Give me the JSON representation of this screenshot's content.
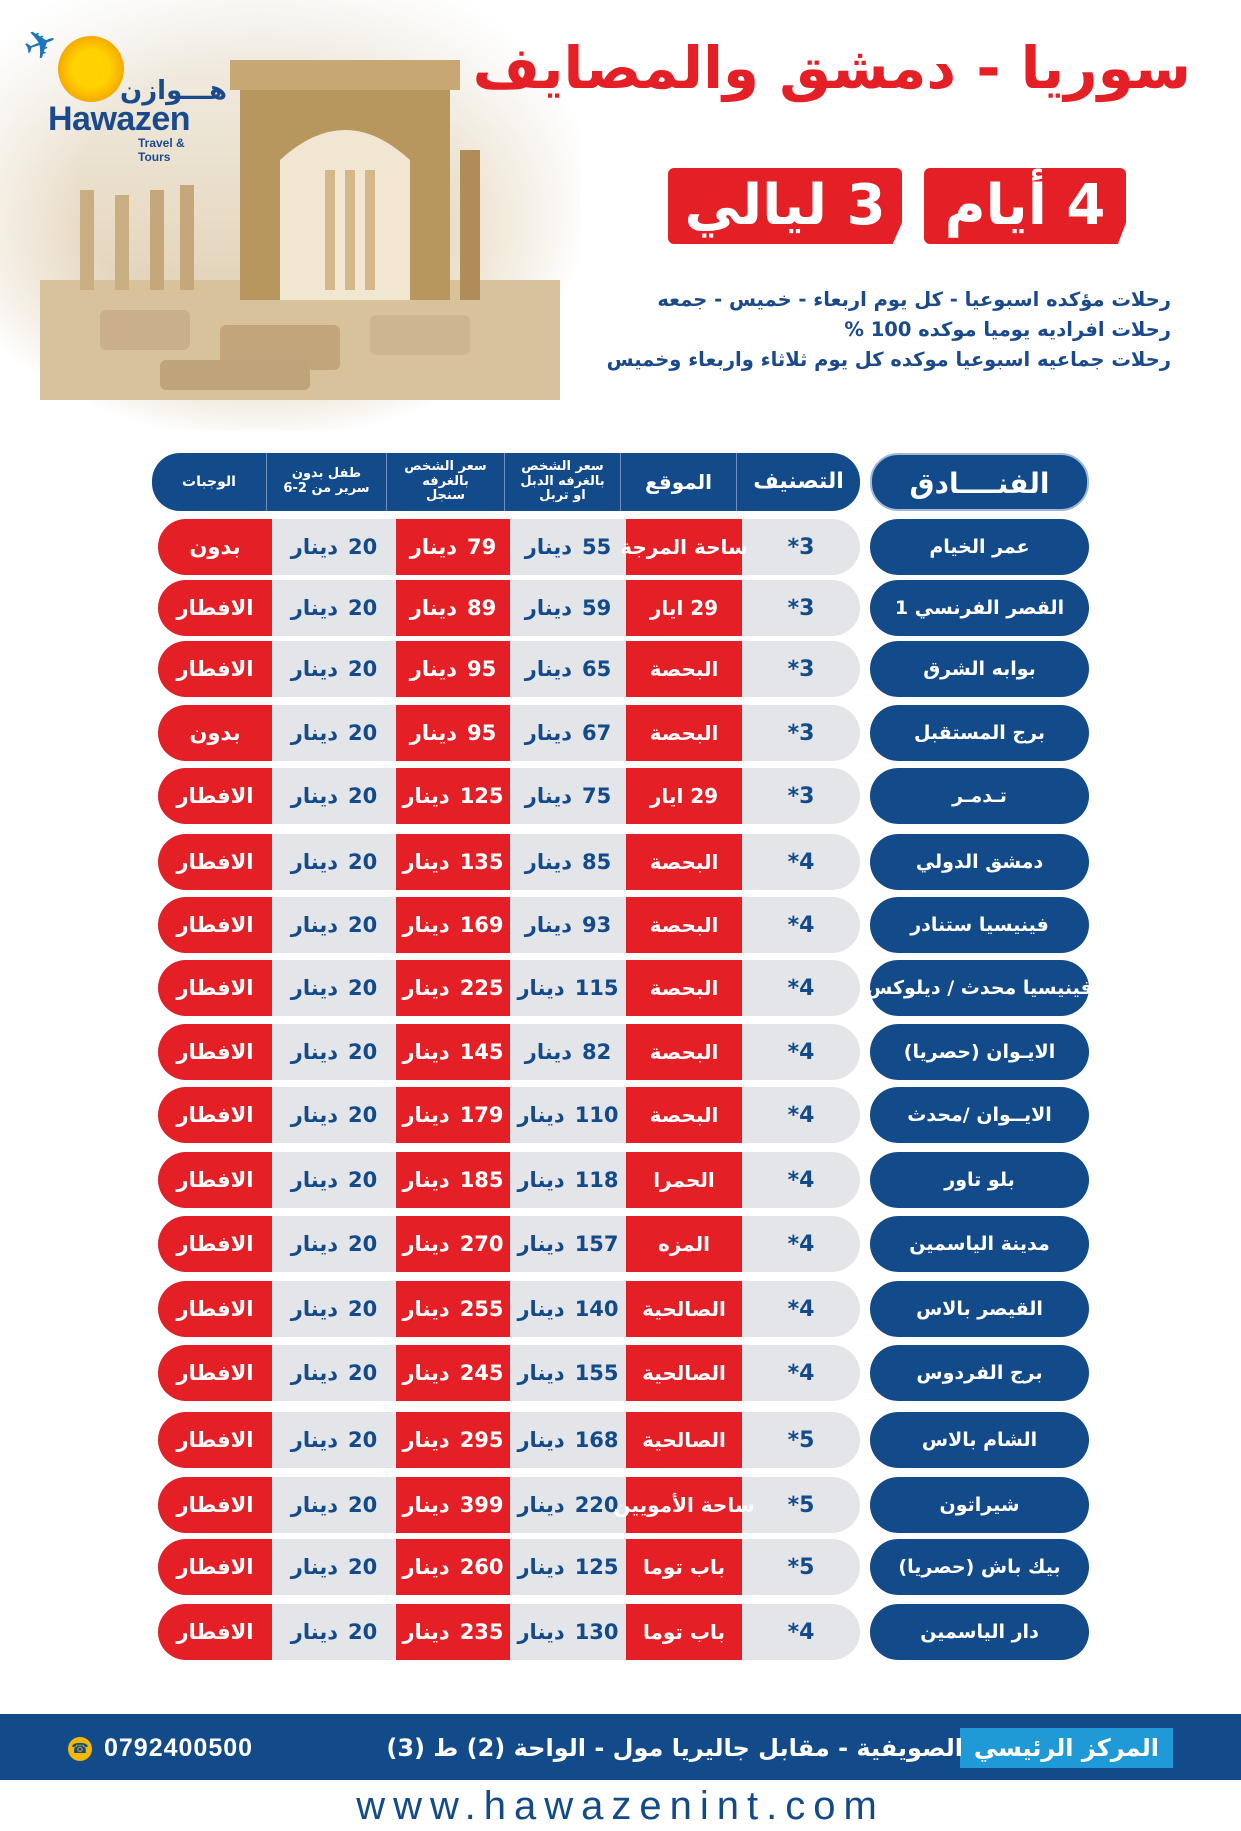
{
  "brand": {
    "name_ar": "هـــوازن",
    "name_en": "Hawazen",
    "tagline": "Travel & Tours"
  },
  "title": "سوريا - دمشق والمصايف",
  "duration": {
    "days": "4 أيام",
    "nights": "3 ليالي"
  },
  "info_lines": [
    "رحلات مؤكده اسبوعيا - كل يوم اربعاء - خميس - جمعه",
    "رحلات افراديه يوميا موكده 100 %",
    "رحلات جماعيه اسبوعيا موكده كل يوم ثلاثاء واربعاء وخميس"
  ],
  "table": {
    "headers": {
      "hotels": "الفنــــادق",
      "classification": "التصنيف",
      "location": "الموقع",
      "double": "سعر الشخص بالغرفه الدبل او تربل",
      "single": "سعر الشخص بالغرفه سنجل",
      "child": "طفل بدون سرير من 2-6",
      "meals": "الوجبات"
    },
    "currency": "دينار",
    "rows": [
      {
        "hotel": "عمر الخيام",
        "class": "3*",
        "location": "ساحة المرجة",
        "double": "55",
        "single": "79",
        "child": "20",
        "meals": "بدون"
      },
      {
        "hotel": "القصر الفرنسي 1",
        "class": "3*",
        "location": "29 ايار",
        "double": "59",
        "single": "89",
        "child": "20",
        "meals": "الافطار"
      },
      {
        "hotel": "بوابه الشرق",
        "class": "3*",
        "location": "البحصة",
        "double": "65",
        "single": "95",
        "child": "20",
        "meals": "الافطار"
      },
      {
        "hotel": "برج المستقبل",
        "class": "3*",
        "location": "البحصة",
        "double": "67",
        "single": "95",
        "child": "20",
        "meals": "بدون"
      },
      {
        "hotel": "تـدمـر",
        "class": "3*",
        "location": "29 ايار",
        "double": "75",
        "single": "125",
        "child": "20",
        "meals": "الافطار"
      },
      {
        "hotel": "دمشق الدولي",
        "class": "4*",
        "location": "البحصة",
        "double": "85",
        "single": "135",
        "child": "20",
        "meals": "الافطار"
      },
      {
        "hotel": "فينيسيا ستنادر",
        "class": "4*",
        "location": "البحصة",
        "double": "93",
        "single": "169",
        "child": "20",
        "meals": "الافطار"
      },
      {
        "hotel": "فينيسيا محدث / ديلوكس",
        "class": "4*",
        "location": "البحصة",
        "double": "115",
        "single": "225",
        "child": "20",
        "meals": "الافطار"
      },
      {
        "hotel": "الايـوان (حصريا)",
        "class": "4*",
        "location": "البحصة",
        "double": "82",
        "single": "145",
        "child": "20",
        "meals": "الافطار"
      },
      {
        "hotel": "الايــوان /محدث",
        "class": "4*",
        "location": "البحصة",
        "double": "110",
        "single": "179",
        "child": "20",
        "meals": "الافطار"
      },
      {
        "hotel": "بلو تاور",
        "class": "4*",
        "location": "الحمرا",
        "double": "118",
        "single": "185",
        "child": "20",
        "meals": "الافطار"
      },
      {
        "hotel": "مدينة الياسمين",
        "class": "4*",
        "location": "المزه",
        "double": "157",
        "single": "270",
        "child": "20",
        "meals": "الافطار"
      },
      {
        "hotel": "القيصر بالاس",
        "class": "4*",
        "location": "الصالحية",
        "double": "140",
        "single": "255",
        "child": "20",
        "meals": "الافطار"
      },
      {
        "hotel": "برج الفردوس",
        "class": "4*",
        "location": "الصالحية",
        "double": "155",
        "single": "245",
        "child": "20",
        "meals": "الافطار"
      },
      {
        "hotel": "الشام بالاس",
        "class": "5*",
        "location": "الصالحية",
        "double": "168",
        "single": "295",
        "child": "20",
        "meals": "الافطار"
      },
      {
        "hotel": "شيراتون",
        "class": "5*",
        "location": "ساحة الأمويين",
        "double": "220",
        "single": "399",
        "child": "20",
        "meals": "الافطار"
      },
      {
        "hotel": "بيك باش (حصريا)",
        "class": "5*",
        "location": "باب توما",
        "double": "125",
        "single": "260",
        "child": "20",
        "meals": "الافطار"
      },
      {
        "hotel": "دار الياسمين",
        "class": "4*",
        "location": "باب توما",
        "double": "130",
        "single": "235",
        "child": "20",
        "meals": "الافطار"
      }
    ]
  },
  "footer": {
    "center_label": "المركز الرئيسي",
    "address": "الصويفية - مقابل جاليريا مول - الواحة (2) ط (3)",
    "phone": "0792400500",
    "website": "www.hawazenint.com"
  },
  "colors": {
    "navy": "#134a8a",
    "red": "#e41f26",
    "row_gray": "#e3e5e9",
    "cyan": "#1f9ad6"
  },
  "icons": [
    "airplane-icon",
    "sun-icon",
    "phone-icon"
  ]
}
